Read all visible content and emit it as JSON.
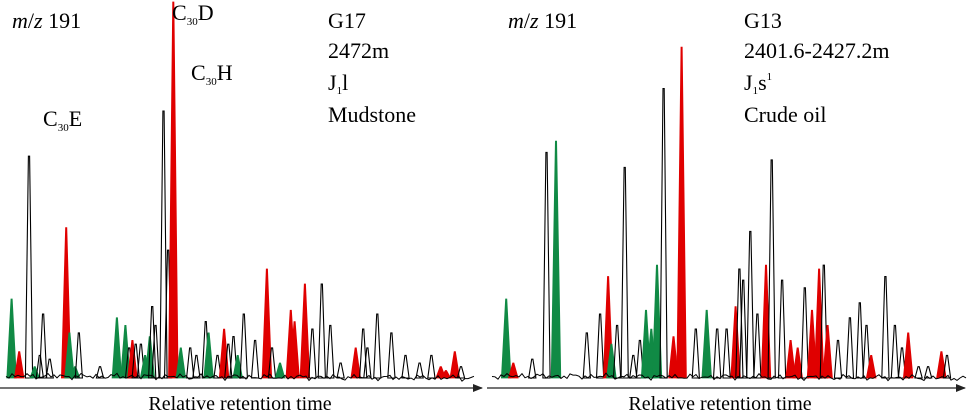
{
  "chart_data": [
    {
      "type": "line",
      "title": "m/z 191",
      "info": [
        "G17",
        "2472m",
        "J1l",
        "Mudstone"
      ],
      "xlabel": "Relative retention time",
      "ylabel": "",
      "annotations": [
        {
          "text": "C30E",
          "peak": 7
        },
        {
          "text": "C30D",
          "peak": 22
        },
        {
          "text": "C30H",
          "peak": 25
        }
      ],
      "colors": {
        "black": "#000000",
        "red": "#e00000",
        "green": "#108a45"
      },
      "x": [
        0.012,
        0.028,
        0.049,
        0.061,
        0.072,
        0.079,
        0.093,
        0.128,
        0.135,
        0.147,
        0.155,
        0.2,
        0.236,
        0.254,
        0.262,
        0.269,
        0.276,
        0.287,
        0.296,
        0.306,
        0.311,
        0.318,
        0.335,
        0.345,
        0.356,
        0.372,
        0.392,
        0.405,
        0.425,
        0.431,
        0.45,
        0.464,
        0.473,
        0.484,
        0.493,
        0.506,
        0.53,
        0.555,
        0.566,
        0.583,
        0.606,
        0.614,
        0.636,
        0.652,
        0.672,
        0.69,
        0.712,
        0.744,
        0.76,
        0.769,
        0.79,
        0.82,
        0.85,
        0.88,
        0.905,
        0.925,
        0.936,
        0.955,
        0.968
      ],
      "y": [
        21,
        7,
        59,
        3,
        6,
        17,
        5,
        40,
        12,
        3,
        12,
        3,
        16,
        14,
        8,
        10,
        9,
        9,
        6,
        11,
        19,
        14,
        71,
        34,
        100,
        8,
        8,
        6,
        15,
        12,
        6,
        13,
        9,
        11,
        6,
        17,
        10,
        29,
        8,
        4,
        18,
        15,
        25,
        13,
        25,
        14,
        4,
        8,
        13,
        8,
        17,
        12,
        6,
        4,
        6,
        3,
        2,
        7,
        3
      ],
      "colors_by_peak": [
        "green",
        "red",
        "black",
        "green",
        "black",
        "black",
        "black",
        "red",
        "green",
        "green",
        "black",
        "black",
        "green",
        "green",
        "black",
        "red",
        "black",
        "black",
        "green",
        "green",
        "black",
        "black",
        "black",
        "black",
        "red",
        "green",
        "black",
        "black",
        "black",
        "green",
        "black",
        "red",
        "black",
        "black",
        "green",
        "black",
        "black",
        "red",
        "black",
        "green",
        "red",
        "red",
        "red",
        "black",
        "black",
        "black",
        "black",
        "red",
        "black",
        "black",
        "black",
        "black",
        "black",
        "black",
        "black",
        "red",
        "red",
        "red",
        "black"
      ]
    },
    {
      "type": "line",
      "title": "m/z 191",
      "info": [
        "G13",
        "2401.6-2427.2m",
        "J1s1",
        "Crude oil"
      ],
      "xlabel": "Relative retention time",
      "ylabel": "",
      "annotations": [],
      "colors": {
        "black": "#000000",
        "red": "#e00000",
        "green": "#108a45"
      },
      "x": [
        0.03,
        0.045,
        0.085,
        0.115,
        0.135,
        0.2,
        0.228,
        0.245,
        0.252,
        0.264,
        0.28,
        0.298,
        0.312,
        0.325,
        0.336,
        0.348,
        0.362,
        0.383,
        0.4,
        0.43,
        0.453,
        0.475,
        0.495,
        0.514,
        0.522,
        0.53,
        0.545,
        0.56,
        0.578,
        0.59,
        0.612,
        0.63,
        0.645,
        0.66,
        0.675,
        0.69,
        0.7,
        0.708,
        0.73,
        0.755,
        0.776,
        0.79,
        0.8,
        0.83,
        0.85,
        0.865,
        0.878,
        0.9,
        0.92,
        0.948,
        0.96
      ],
      "y": [
        21,
        4,
        5,
        60,
        63,
        12,
        17,
        27,
        9,
        14,
        56,
        6,
        10,
        18,
        13,
        30,
        77,
        11,
        88,
        13,
        18,
        13,
        13,
        19,
        29,
        26,
        39,
        17,
        30,
        58,
        26,
        10,
        8,
        24,
        18,
        29,
        30,
        14,
        10,
        16,
        20,
        14,
        6,
        27,
        14,
        8,
        12,
        3,
        3,
        7,
        6
      ],
      "colors_by_peak": [
        "green",
        "red",
        "black",
        "black",
        "green",
        "black",
        "black",
        "red",
        "green",
        "black",
        "black",
        "black",
        "black",
        "green",
        "green",
        "green",
        "black",
        "red",
        "red",
        "black",
        "green",
        "black",
        "black",
        "red",
        "black",
        "black",
        "black",
        "black",
        "red",
        "black",
        "black",
        "red",
        "red",
        "black",
        "red",
        "red",
        "black",
        "red",
        "black",
        "black",
        "black",
        "black",
        "red",
        "black",
        "black",
        "black",
        "red",
        "black",
        "black",
        "red",
        "black"
      ]
    }
  ]
}
